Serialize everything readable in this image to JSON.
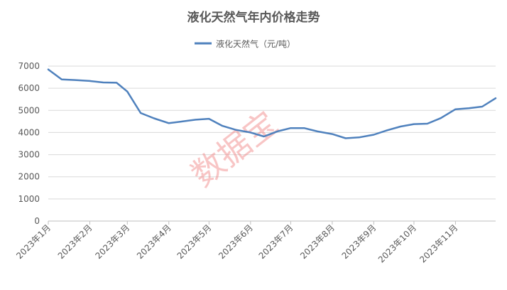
{
  "chart_data": {
    "type": "line",
    "title": "液化天然气年内价格走势",
    "xlabel": "",
    "ylabel": "",
    "ylim": [
      0,
      7000
    ],
    "yticks": [
      0,
      1000,
      2000,
      3000,
      4000,
      5000,
      6000,
      7000
    ],
    "grid": true,
    "legend_position": "top-center",
    "watermark": "数据宝",
    "month_labels": [
      "2023年1月",
      "2023年2月",
      "2023年3月",
      "2023年4月",
      "2023年5月",
      "2023年6月",
      "2023年7月",
      "2023年8月",
      "2023年9月",
      "2023年10月",
      "2023年11月"
    ],
    "series": [
      {
        "name": "液化天然气（元/吨）",
        "color": "#4f81bd",
        "points": [
          {
            "x": "2023-01-01",
            "y": 6850
          },
          {
            "x": "2023-01-11",
            "y": 6400
          },
          {
            "x": "2023-01-21",
            "y": 6370
          },
          {
            "x": "2023-02-01",
            "y": 6330
          },
          {
            "x": "2023-02-11",
            "y": 6260
          },
          {
            "x": "2023-02-21",
            "y": 6250
          },
          {
            "x": "2023-03-01",
            "y": 5850
          },
          {
            "x": "2023-03-11",
            "y": 4880
          },
          {
            "x": "2023-03-21",
            "y": 4640
          },
          {
            "x": "2023-04-01",
            "y": 4420
          },
          {
            "x": "2023-04-11",
            "y": 4500
          },
          {
            "x": "2023-04-21",
            "y": 4580
          },
          {
            "x": "2023-05-01",
            "y": 4620
          },
          {
            "x": "2023-05-11",
            "y": 4300
          },
          {
            "x": "2023-05-21",
            "y": 4120
          },
          {
            "x": "2023-06-01",
            "y": 4000
          },
          {
            "x": "2023-06-11",
            "y": 3820
          },
          {
            "x": "2023-06-21",
            "y": 4050
          },
          {
            "x": "2023-07-01",
            "y": 4200
          },
          {
            "x": "2023-07-11",
            "y": 4200
          },
          {
            "x": "2023-07-21",
            "y": 4050
          },
          {
            "x": "2023-08-01",
            "y": 3930
          },
          {
            "x": "2023-08-11",
            "y": 3740
          },
          {
            "x": "2023-08-21",
            "y": 3780
          },
          {
            "x": "2023-09-01",
            "y": 3900
          },
          {
            "x": "2023-09-11",
            "y": 4100
          },
          {
            "x": "2023-09-21",
            "y": 4270
          },
          {
            "x": "2023-10-01",
            "y": 4380
          },
          {
            "x": "2023-10-11",
            "y": 4400
          },
          {
            "x": "2023-10-21",
            "y": 4650
          },
          {
            "x": "2023-11-01",
            "y": 5050
          },
          {
            "x": "2023-11-11",
            "y": 5100
          },
          {
            "x": "2023-11-21",
            "y": 5170
          },
          {
            "x": "2023-12-01",
            "y": 5550
          }
        ]
      }
    ]
  }
}
